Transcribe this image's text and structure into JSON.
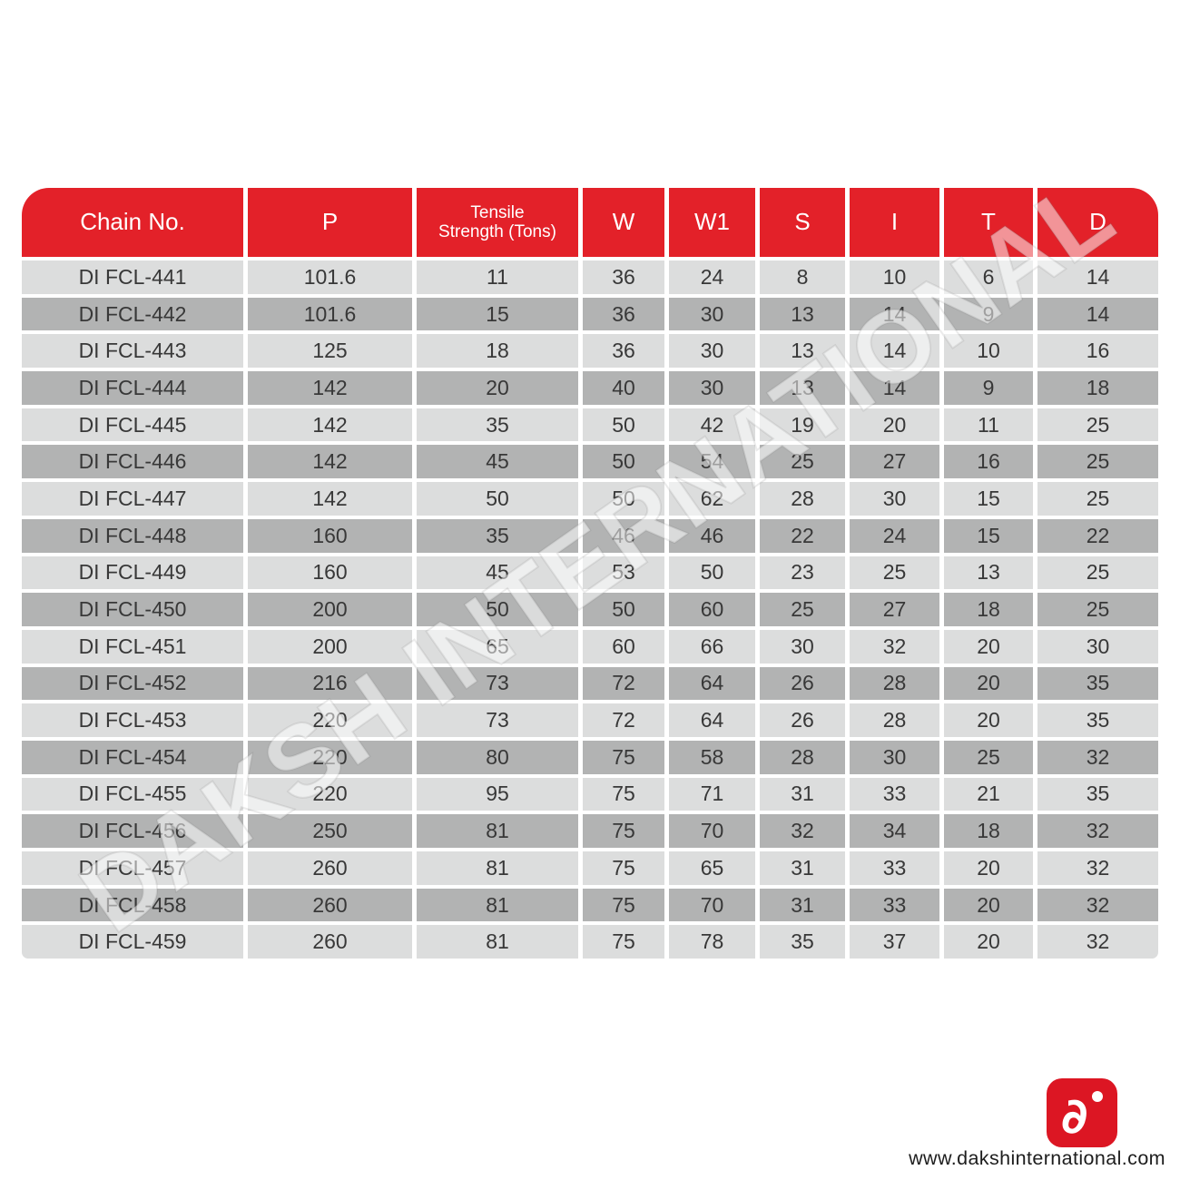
{
  "table": {
    "columns": [
      {
        "key": "chain-no",
        "label": "Chain No.",
        "small": false
      },
      {
        "key": "p",
        "label": "P",
        "small": false
      },
      {
        "key": "tensile-strength",
        "label": "Tensile\nStrength (Tons)",
        "small": true
      },
      {
        "key": "w",
        "label": "W",
        "small": false
      },
      {
        "key": "w1",
        "label": "W1",
        "small": false
      },
      {
        "key": "s",
        "label": "S",
        "small": false
      },
      {
        "key": "i",
        "label": "I",
        "small": false
      },
      {
        "key": "t",
        "label": "T",
        "small": false
      },
      {
        "key": "d",
        "label": "D",
        "small": false
      }
    ],
    "rows": [
      [
        "DI FCL-441",
        "101.6",
        "11",
        "36",
        "24",
        "8",
        "10",
        "6",
        "14"
      ],
      [
        "DI FCL-442",
        "101.6",
        "15",
        "36",
        "30",
        "13",
        "14",
        "9",
        "14"
      ],
      [
        "DI FCL-443",
        "125",
        "18",
        "36",
        "30",
        "13",
        "14",
        "10",
        "16"
      ],
      [
        "DI FCL-444",
        "142",
        "20",
        "40",
        "30",
        "13",
        "14",
        "9",
        "18"
      ],
      [
        "DI FCL-445",
        "142",
        "35",
        "50",
        "42",
        "19",
        "20",
        "11",
        "25"
      ],
      [
        "DI FCL-446",
        "142",
        "45",
        "50",
        "54",
        "25",
        "27",
        "16",
        "25"
      ],
      [
        "DI FCL-447",
        "142",
        "50",
        "50",
        "62",
        "28",
        "30",
        "15",
        "25"
      ],
      [
        "DI FCL-448",
        "160",
        "35",
        "46",
        "46",
        "22",
        "24",
        "15",
        "22"
      ],
      [
        "DI FCL-449",
        "160",
        "45",
        "53",
        "50",
        "23",
        "25",
        "13",
        "25"
      ],
      [
        "DI FCL-450",
        "200",
        "50",
        "50",
        "60",
        "25",
        "27",
        "18",
        "25"
      ],
      [
        "DI FCL-451",
        "200",
        "65",
        "60",
        "66",
        "30",
        "32",
        "20",
        "30"
      ],
      [
        "DI FCL-452",
        "216",
        "73",
        "72",
        "64",
        "26",
        "28",
        "20",
        "35"
      ],
      [
        "DI FCL-453",
        "220",
        "73",
        "72",
        "64",
        "26",
        "28",
        "20",
        "35"
      ],
      [
        "DI FCL-454",
        "220",
        "80",
        "75",
        "58",
        "28",
        "30",
        "25",
        "32"
      ],
      [
        "DI FCL-455",
        "220",
        "95",
        "75",
        "71",
        "31",
        "33",
        "21",
        "35"
      ],
      [
        "DI FCL-456",
        "250",
        "81",
        "75",
        "70",
        "32",
        "34",
        "18",
        "32"
      ],
      [
        "DI FCL-457",
        "260",
        "81",
        "75",
        "65",
        "31",
        "33",
        "20",
        "32"
      ],
      [
        "DI FCL-458",
        "260",
        "81",
        "75",
        "70",
        "31",
        "33",
        "20",
        "32"
      ],
      [
        "DI FCL-459",
        "260",
        "81",
        "75",
        "78",
        "35",
        "37",
        "20",
        "32"
      ]
    ]
  },
  "watermark": {
    "text": "DAKSH INTERNATIONAL"
  },
  "footer": {
    "website": "www.dakshinternational.com",
    "logo_glyph": "∂"
  },
  "colors": {
    "header_red": "#e32129",
    "logo_red": "#dc1623",
    "row_light": "#dcdddd",
    "row_dark": "#b2b3b3",
    "cell_text": "#383838"
  }
}
